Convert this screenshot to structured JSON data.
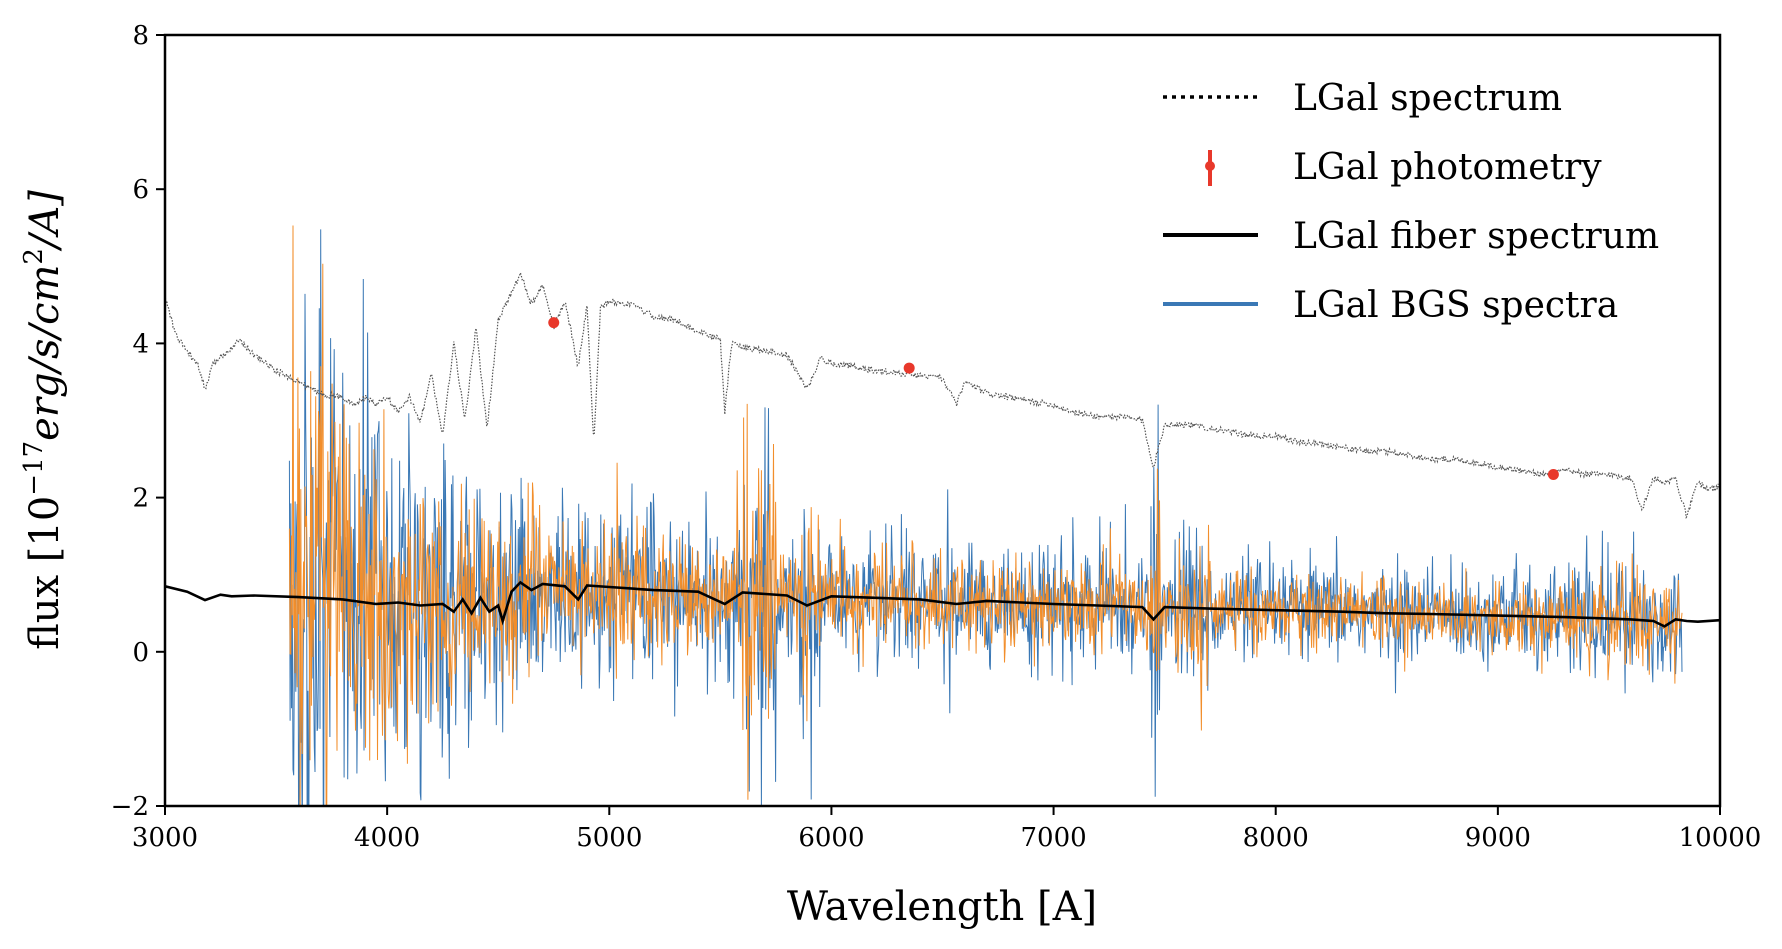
{
  "chart_data": {
    "type": "line",
    "title": "",
    "xlabel": "Wavelength [A]",
    "ylabel": "flux [10^-17 erg/s/cm^2/A]",
    "ylabel_parts": {
      "prefix": "flux [10",
      "exp1": "−17",
      "mid": "erg/s/cm",
      "exp2": "2",
      "suffix": "/A]"
    },
    "xlim": [
      3000,
      10000
    ],
    "ylim": [
      -2,
      8
    ],
    "xticks": [
      3000,
      4000,
      5000,
      6000,
      7000,
      8000,
      9000,
      10000
    ],
    "yticks": [
      -2,
      0,
      2,
      4,
      6,
      8
    ],
    "xtick_labels": [
      "3000",
      "4000",
      "5000",
      "6000",
      "7000",
      "8000",
      "9000",
      "10000"
    ],
    "ytick_labels": [
      "−2",
      "0",
      "2",
      "4",
      "6",
      "8"
    ],
    "grid": false,
    "legend_position": "top-right",
    "series": [
      {
        "name": "LGal spectrum",
        "style": "dotted",
        "color": "#555555",
        "x": [
          3000,
          3050,
          3100,
          3150,
          3180,
          3220,
          3260,
          3300,
          3340,
          3400,
          3500,
          3600,
          3700,
          3800,
          3850,
          3900,
          3950,
          4000,
          4050,
          4100,
          4150,
          4200,
          4250,
          4300,
          4350,
          4400,
          4450,
          4500,
          4550,
          4600,
          4650,
          4700,
          4750,
          4800,
          4860,
          4900,
          4930,
          4960,
          5000,
          5100,
          5200,
          5300,
          5400,
          5500,
          5520,
          5550,
          5600,
          5700,
          5800,
          5890,
          5950,
          6000,
          6100,
          6200,
          6300,
          6400,
          6500,
          6563,
          6600,
          6700,
          6800,
          6900,
          7000,
          7100,
          7200,
          7300,
          7400,
          7450,
          7500,
          7600,
          7700,
          7800,
          7900,
          8000,
          8100,
          8200,
          8300,
          8400,
          8500,
          8600,
          8700,
          8800,
          8900,
          9000,
          9100,
          9200,
          9300,
          9400,
          9500,
          9600,
          9650,
          9700,
          9750,
          9800,
          9850,
          9900,
          9950,
          10000
        ],
        "y": [
          4.6,
          4.1,
          3.9,
          3.7,
          3.4,
          3.75,
          3.85,
          3.95,
          4.05,
          3.85,
          3.65,
          3.5,
          3.35,
          3.3,
          3.2,
          3.3,
          3.2,
          3.3,
          3.1,
          3.3,
          3.0,
          3.6,
          2.8,
          4.0,
          3.0,
          4.2,
          2.9,
          4.3,
          4.6,
          4.9,
          4.5,
          4.75,
          4.2,
          4.55,
          3.7,
          4.5,
          2.7,
          4.45,
          4.55,
          4.5,
          4.35,
          4.3,
          4.15,
          4.05,
          3.1,
          4.0,
          3.95,
          3.9,
          3.85,
          3.4,
          3.8,
          3.75,
          3.7,
          3.65,
          3.62,
          3.58,
          3.55,
          3.2,
          3.5,
          3.35,
          3.3,
          3.25,
          3.2,
          3.1,
          3.05,
          3.05,
          3.0,
          2.4,
          2.95,
          2.95,
          2.9,
          2.85,
          2.8,
          2.8,
          2.72,
          2.7,
          2.65,
          2.6,
          2.6,
          2.55,
          2.5,
          2.5,
          2.45,
          2.4,
          2.35,
          2.3,
          2.35,
          2.3,
          2.3,
          2.25,
          1.85,
          2.25,
          2.2,
          2.25,
          1.75,
          2.2,
          2.1,
          2.15
        ]
      },
      {
        "name": "LGal photometry",
        "style": "points",
        "color": "#e8382b",
        "x": [
          4750,
          6350,
          9250
        ],
        "y": [
          4.27,
          3.68,
          2.3
        ]
      },
      {
        "name": "LGal fiber spectrum",
        "style": "solid",
        "color": "#000000",
        "x": [
          3000,
          3100,
          3180,
          3250,
          3300,
          3400,
          3600,
          3800,
          3950,
          4050,
          4150,
          4250,
          4300,
          4340,
          4380,
          4420,
          4460,
          4500,
          4520,
          4560,
          4600,
          4650,
          4700,
          4800,
          4860,
          4900,
          5000,
          5200,
          5400,
          5520,
          5600,
          5800,
          5890,
          6000,
          6200,
          6400,
          6563,
          6700,
          7000,
          7200,
          7400,
          7450,
          7500,
          7700,
          8000,
          8300,
          8500,
          8700,
          9000,
          9300,
          9500,
          9600,
          9700,
          9750,
          9800,
          9850,
          9900,
          10000
        ],
        "y": [
          0.85,
          0.78,
          0.67,
          0.74,
          0.72,
          0.73,
          0.71,
          0.68,
          0.62,
          0.64,
          0.6,
          0.62,
          0.52,
          0.68,
          0.5,
          0.7,
          0.52,
          0.6,
          0.4,
          0.78,
          0.9,
          0.8,
          0.88,
          0.85,
          0.68,
          0.86,
          0.84,
          0.8,
          0.78,
          0.62,
          0.77,
          0.73,
          0.6,
          0.72,
          0.7,
          0.68,
          0.62,
          0.66,
          0.62,
          0.6,
          0.58,
          0.42,
          0.58,
          0.56,
          0.54,
          0.52,
          0.5,
          0.49,
          0.47,
          0.45,
          0.43,
          0.42,
          0.4,
          0.33,
          0.42,
          0.4,
          0.39,
          0.41
        ]
      },
      {
        "name": "LGal BGS spectra",
        "style": "noisy",
        "color": "#3a78b5",
        "x_range": [
          3560,
          9830
        ]
      },
      {
        "name": "",
        "style": "noisy",
        "color": "#f28e2b",
        "x_range": [
          3560,
          9830
        ]
      }
    ],
    "legend": [
      {
        "label": "LGal spectrum",
        "marker": "dotted",
        "color": "#000000"
      },
      {
        "label": "LGal photometry",
        "marker": "errorbar",
        "color": "#e8382b"
      },
      {
        "label": "LGal fiber spectrum",
        "marker": "solid",
        "color": "#000000"
      },
      {
        "label": "LGal BGS spectra",
        "marker": "solid",
        "color": "#3a78b5"
      }
    ]
  }
}
